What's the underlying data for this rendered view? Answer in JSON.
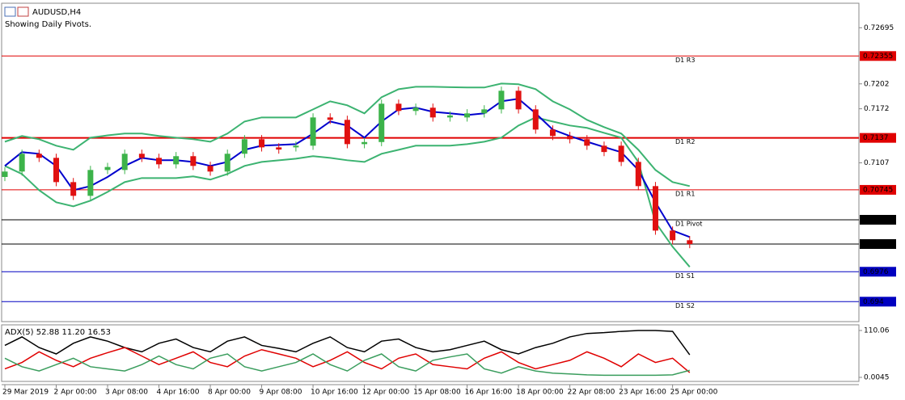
{
  "header": {
    "symbol": "AUDUSD,H4",
    "note": "Showing Daily Pivots."
  },
  "chart_data": [
    {
      "type": "candlestick",
      "categories": [
        "29 Mar 2019",
        null,
        null,
        "2 Apr 00:00",
        null,
        null,
        "3 Apr 08:00",
        null,
        null,
        "4 Apr 16:00",
        null,
        null,
        "8 Apr 00:00",
        null,
        null,
        "9 Apr 08:00",
        null,
        null,
        "10 Apr 16:00",
        null,
        null,
        "12 Apr 00:00",
        null,
        null,
        "15 Apr 08:00",
        null,
        null,
        "16 Apr 16:00",
        null,
        null,
        "18 Apr 00:00",
        null,
        null,
        "22 Apr 08:00",
        null,
        null,
        "23 Apr 16:00",
        null,
        null,
        "25 Apr 00:00",
        null
      ],
      "open": [
        0.709,
        0.70965,
        0.71179,
        0.7113,
        0.70838,
        0.70673,
        0.70984,
        0.70984,
        0.71179,
        0.7113,
        0.71052,
        0.7115,
        0.71033,
        0.70965,
        0.71179,
        0.71354,
        0.71256,
        0.71256,
        0.71276,
        0.71616,
        0.71587,
        0.71295,
        0.7132,
        0.71781,
        0.71694,
        0.71733,
        0.71616,
        0.71616,
        0.71665,
        0.71713,
        0.71937,
        0.71713,
        0.7147,
        0.71393,
        0.71354,
        0.71276,
        0.71276,
        0.71081,
        0.7079,
        0.70255,
        0.70139
      ],
      "high": [
        0.71015,
        0.71229,
        0.71229,
        0.7118,
        0.70888,
        0.71034,
        0.7107,
        0.71229,
        0.71229,
        0.7118,
        0.712,
        0.712,
        0.71083,
        0.71229,
        0.71404,
        0.71404,
        0.71306,
        0.71326,
        0.71666,
        0.71666,
        0.71637,
        0.7137,
        0.71831,
        0.71831,
        0.71783,
        0.71783,
        0.7169,
        0.71715,
        0.71763,
        0.71987,
        0.71987,
        0.71763,
        0.7152,
        0.71443,
        0.71404,
        0.71326,
        0.71326,
        0.71131,
        0.7084,
        0.70305,
        0.70189
      ],
      "low": [
        0.7085,
        0.70915,
        0.7108,
        0.70788,
        0.70623,
        0.70623,
        0.70934,
        0.70934,
        0.7108,
        0.71002,
        0.71002,
        0.70983,
        0.70915,
        0.70915,
        0.71129,
        0.71206,
        0.7118,
        0.71206,
        0.71226,
        0.71537,
        0.71245,
        0.71245,
        0.7127,
        0.71644,
        0.71644,
        0.71566,
        0.71566,
        0.71566,
        0.71615,
        0.71663,
        0.71663,
        0.7142,
        0.71343,
        0.71304,
        0.71226,
        0.7115,
        0.71031,
        0.7074,
        0.70205,
        0.70089,
        0.70043
      ],
      "close": [
        0.70965,
        0.71179,
        0.7113,
        0.70838,
        0.70673,
        0.70984,
        0.7102,
        0.71179,
        0.7113,
        0.71052,
        0.7115,
        0.71033,
        0.70965,
        0.71179,
        0.71354,
        0.71256,
        0.7123,
        0.71276,
        0.71616,
        0.71587,
        0.71295,
        0.7132,
        0.71781,
        0.71694,
        0.71733,
        0.71616,
        0.7164,
        0.71665,
        0.71713,
        0.71937,
        0.71713,
        0.7147,
        0.71393,
        0.71354,
        0.71276,
        0.712,
        0.71081,
        0.7079,
        0.70255,
        0.70139,
        0.70093
      ],
      "up_color": "#3cb34a",
      "down_color": "#e01010",
      "overlays": [
        {
          "color": "#3cb371",
          "values": [
            0.71324,
            0.71393,
            0.71354,
            0.71276,
            0.71227,
            0.71373,
            0.714,
            0.71422,
            0.71422,
            0.71393,
            0.71373,
            0.71354,
            0.71324,
            0.71422,
            0.71567,
            0.71616,
            0.71616,
            0.71616,
            0.71713,
            0.7181,
            0.71762,
            0.71665,
            0.71859,
            0.71956,
            0.71985,
            0.71985,
            0.7198,
            0.71976,
            0.71976,
            0.72024,
            0.72015,
            0.71956,
            0.7181,
            0.71713,
            0.71587,
            0.715,
            0.71422,
            0.71227,
            0.70984,
            0.70838,
            0.7079
          ]
        },
        {
          "color": "#3cb371",
          "values": [
            0.71033,
            0.70936,
            0.70741,
            0.70595,
            0.70547,
            0.70615,
            0.7072,
            0.70838,
            0.70887,
            0.70887,
            0.70887,
            0.70907,
            0.70868,
            0.70936,
            0.71033,
            0.71081,
            0.711,
            0.7112,
            0.7115,
            0.7113,
            0.71101,
            0.71081,
            0.71179,
            0.71227,
            0.71276,
            0.71276,
            0.71276,
            0.71295,
            0.71324,
            0.71373,
            0.71519,
            0.71616,
            0.71567,
            0.71519,
            0.7149,
            0.7143,
            0.71373,
            0.71081,
            0.70352,
            0.70061,
            0.69818
          ]
        },
        {
          "color": "#0000cd",
          "values": [
            0.71033,
            0.71198,
            0.71179,
            0.71033,
            0.70741,
            0.7079,
            0.709,
            0.71033,
            0.7113,
            0.71101,
            0.71101,
            0.71081,
            0.71033,
            0.71081,
            0.71227,
            0.71276,
            0.71285,
            0.71295,
            0.71422,
            0.71567,
            0.71519,
            0.71373,
            0.71567,
            0.71713,
            0.71733,
            0.71684,
            0.71665,
            0.71645,
            0.71665,
            0.7181,
            0.7184,
            0.71665,
            0.7147,
            0.71393,
            0.71324,
            0.7126,
            0.71198,
            0.70984,
            0.70595,
            0.70255,
            0.70178
          ]
        }
      ],
      "levels": [
        {
          "label": "D1 R3",
          "value": 0.72355,
          "color": "#e00000"
        },
        {
          "label": "D1 R2",
          "value": 0.7137,
          "color": "#e00000"
        },
        {
          "label": "D1 R1",
          "value": 0.70745,
          "color": "#e00000"
        },
        {
          "label": "D1 Pivot",
          "value": 0.70385,
          "color": "#000000"
        },
        {
          "label": "D1 S1",
          "value": 0.6976,
          "color": "#0000c0"
        },
        {
          "label": "D1 S2",
          "value": 0.694,
          "color": "#0000c0"
        }
      ],
      "price_line": 0.70093,
      "ylim": [
        0.6916,
        0.7298
      ],
      "yticks": [
        0.72695,
        0.7202,
        0.7172,
        0.7107
      ]
    },
    {
      "type": "line",
      "title": "ADX(5) 52.88 11.20 16.53",
      "series": [
        {
          "color": "#000000",
          "values": [
            75,
            95,
            70,
            55,
            80,
            95,
            85,
            70,
            60,
            80,
            90,
            70,
            60,
            85,
            95,
            75,
            68,
            60,
            80,
            95,
            70,
            60,
            85,
            90,
            70,
            60,
            65,
            75,
            85,
            65,
            55,
            70,
            80,
            95,
            103,
            105,
            108,
            110,
            110,
            108,
            52.88
          ]
        },
        {
          "color": "#e00000",
          "values": [
            20,
            35,
            60,
            40,
            25,
            45,
            58,
            70,
            50,
            30,
            45,
            60,
            35,
            25,
            50,
            65,
            55,
            45,
            25,
            40,
            60,
            35,
            20,
            45,
            55,
            30,
            25,
            20,
            45,
            60,
            35,
            20,
            30,
            40,
            60,
            45,
            25,
            55,
            35,
            45,
            11.2
          ]
        },
        {
          "color": "#3a9d5d",
          "values": [
            45,
            25,
            15,
            30,
            45,
            25,
            20,
            15,
            30,
            50,
            30,
            20,
            45,
            55,
            25,
            15,
            25,
            35,
            55,
            30,
            15,
            40,
            55,
            25,
            15,
            40,
            48,
            55,
            20,
            10,
            25,
            15,
            10,
            8,
            6,
            5,
            5,
            5,
            5,
            6,
            16.53
          ]
        }
      ],
      "ylim": [
        -5.7,
        121.4
      ],
      "yticks": [
        110.06,
        0.0045
      ]
    }
  ]
}
